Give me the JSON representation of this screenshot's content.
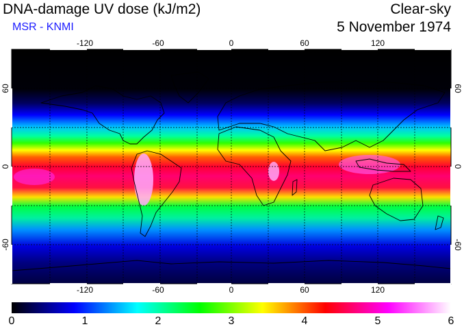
{
  "header": {
    "title": "DNA-damage UV dose (kJ/m2)",
    "subtitle": "MSR - KNMI",
    "condition": "Clear-sky",
    "date": "5 November 1974"
  },
  "map": {
    "lon_ticks": [
      "-120",
      "-60",
      "0",
      "60",
      "120"
    ],
    "lat_ticks": [
      "60",
      "0",
      "-60"
    ],
    "lon_tick_values": [
      -120,
      -60,
      0,
      60,
      120
    ],
    "lat_tick_values": [
      60,
      0,
      -60
    ],
    "lon_range": [
      -180,
      180
    ],
    "lat_range": [
      -90,
      90
    ],
    "grid": "dashed every 30 degrees"
  },
  "colorbar": {
    "labels": [
      "0",
      "1",
      "2",
      "3",
      "4",
      "5",
      "6"
    ],
    "range": [
      0,
      6
    ],
    "colors": [
      "#000000",
      "#0000ff",
      "#00ffff",
      "#00ff00",
      "#ffff00",
      "#ff0000",
      "#ff00ff",
      "#ffffff"
    ]
  }
}
